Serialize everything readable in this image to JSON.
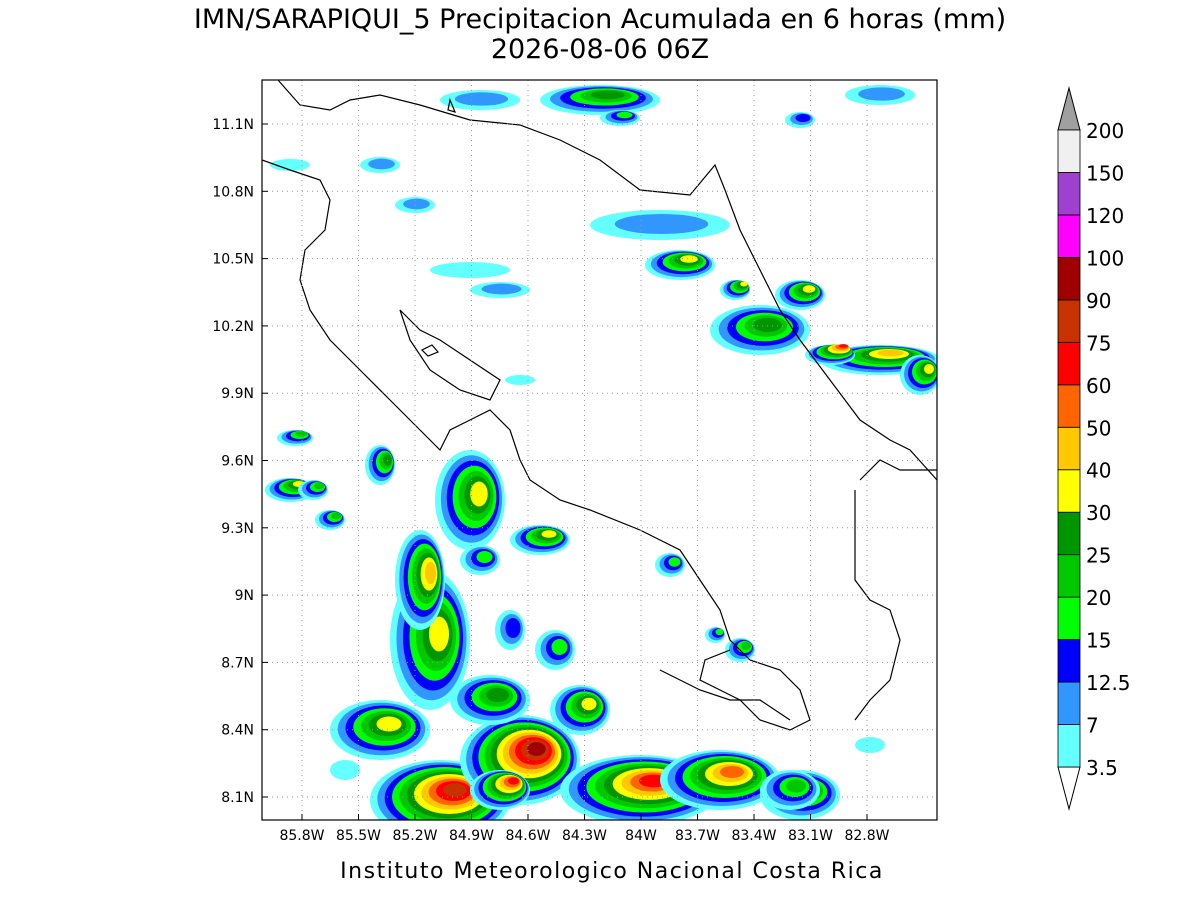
{
  "header": {
    "title": "IMN/SARAPIQUI_5 Precipitacion Acumulada en 6 horas (mm)",
    "subtitle": "2026-08-06 06Z"
  },
  "map": {
    "lat_labels": [
      "11.1N",
      "10.8N",
      "10.5N",
      "10.2N",
      "9.9N",
      "9.6N",
      "9.3N",
      "9N",
      "8.7N",
      "8.4N",
      "8.1N"
    ],
    "lon_labels": [
      "85.8W",
      "85.5W",
      "85.2W",
      "84.9W",
      "84.6W",
      "84.3W",
      "84W",
      "83.7W",
      "83.4W",
      "83.1W",
      "82.8W"
    ]
  },
  "colorbar": {
    "levels": [
      3.5,
      7,
      12.5,
      15,
      20,
      25,
      30,
      40,
      50,
      60,
      75,
      90,
      100,
      120,
      150,
      200
    ],
    "colors": [
      "#64ffff",
      "#3296ff",
      "#0000ff",
      "#00ff00",
      "#00c800",
      "#009600",
      "#ffff00",
      "#ffc800",
      "#ff6400",
      "#ff0000",
      "#c83200",
      "#a00000",
      "#ff00ff",
      "#a040d0",
      "#f0f0f0"
    ]
  },
  "footer": {
    "credit": "Instituto Meteorologico Nacional Costa Rica"
  }
}
